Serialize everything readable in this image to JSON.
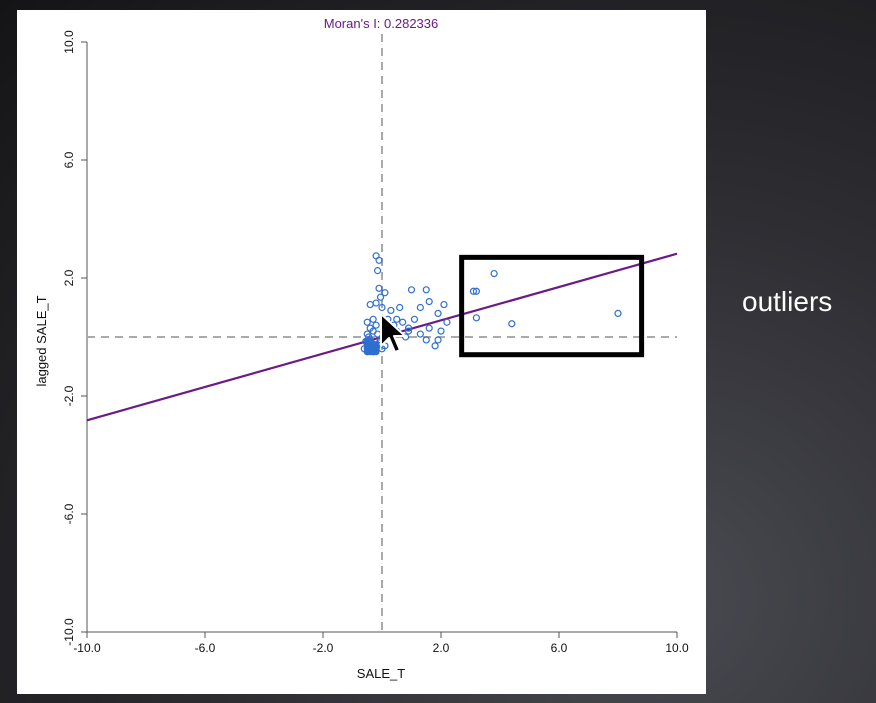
{
  "chart_data": {
    "type": "scatter",
    "title": "Moran's I: 0.282336",
    "xlabel": "SALE_T",
    "ylabel": "lagged SALE_T",
    "xlim": [
      -10,
      10
    ],
    "ylim": [
      -10,
      10
    ],
    "x_ticks": [
      "-10.0",
      "-6.0",
      "-2.0",
      "2.0",
      "6.0",
      "10.0"
    ],
    "y_ticks": [
      "-10.0",
      "-6.0",
      "-2.0",
      "2.0",
      "6.0",
      "10.0"
    ],
    "regression_line": {
      "slope": 0.282336,
      "intercept": 0.0
    },
    "reference_lines": {
      "x": 0,
      "y": 0
    },
    "points": [
      [
        -0.2,
        2.75
      ],
      [
        -0.1,
        2.6
      ],
      [
        -0.15,
        2.25
      ],
      [
        0.1,
        1.5
      ],
      [
        -0.1,
        1.65
      ],
      [
        -0.05,
        1.35
      ],
      [
        -0.4,
        1.1
      ],
      [
        -0.2,
        1.15
      ],
      [
        0.0,
        1.0
      ],
      [
        0.3,
        0.9
      ],
      [
        0.6,
        1.0
      ],
      [
        1.0,
        1.6
      ],
      [
        1.5,
        1.6
      ],
      [
        1.3,
        1.0
      ],
      [
        1.6,
        1.2
      ],
      [
        2.1,
        1.1
      ],
      [
        1.9,
        0.8
      ],
      [
        2.2,
        0.5
      ],
      [
        2.0,
        0.2
      ],
      [
        1.6,
        0.3
      ],
      [
        1.8,
        -0.3
      ],
      [
        1.3,
        0.1
      ],
      [
        1.1,
        0.6
      ],
      [
        0.9,
        0.3
      ],
      [
        0.7,
        0.5
      ],
      [
        0.5,
        0.6
      ],
      [
        0.4,
        0.4
      ],
      [
        0.2,
        0.6
      ],
      [
        0.8,
        0.0
      ],
      [
        1.5,
        -0.1
      ],
      [
        0.9,
        0.2
      ],
      [
        0.5,
        0.2
      ],
      [
        1.9,
        -0.1
      ],
      [
        -0.5,
        0.5
      ],
      [
        -0.4,
        0.3
      ],
      [
        -0.3,
        0.6
      ],
      [
        -0.2,
        0.4
      ],
      [
        -0.5,
        0.1
      ],
      [
        -0.4,
        -0.1
      ],
      [
        -0.5,
        -0.3
      ],
      [
        -0.6,
        -0.4
      ],
      [
        -0.3,
        -0.5
      ],
      [
        -0.2,
        -0.3
      ],
      [
        -0.1,
        -0.2
      ],
      [
        0.0,
        -0.4
      ],
      [
        -0.45,
        0.0
      ],
      [
        -0.35,
        -0.2
      ],
      [
        -0.55,
        -0.15
      ],
      [
        -0.25,
        -0.45
      ],
      [
        0.1,
        -0.3
      ],
      [
        -0.15,
        0.1
      ],
      [
        -0.05,
        -0.1
      ],
      [
        0.2,
        0.1
      ],
      [
        -0.3,
        0.2
      ],
      [
        -0.5,
        -0.5
      ],
      [
        3.1,
        1.55
      ],
      [
        3.2,
        1.55
      ],
      [
        3.8,
        2.15
      ],
      [
        3.2,
        0.65
      ],
      [
        4.4,
        0.45
      ],
      [
        8.0,
        0.8
      ]
    ],
    "annotations": [
      {
        "type": "box",
        "x_range": [
          2.7,
          8.8
        ],
        "y_range": [
          -0.6,
          2.7
        ],
        "label": "outliers"
      }
    ],
    "colors": {
      "points": "#2f6fd0",
      "regression": "#6b1a86",
      "title": "#6b1a86",
      "reference": "#aaaaaa",
      "annotation_box": "#000000"
    }
  }
}
